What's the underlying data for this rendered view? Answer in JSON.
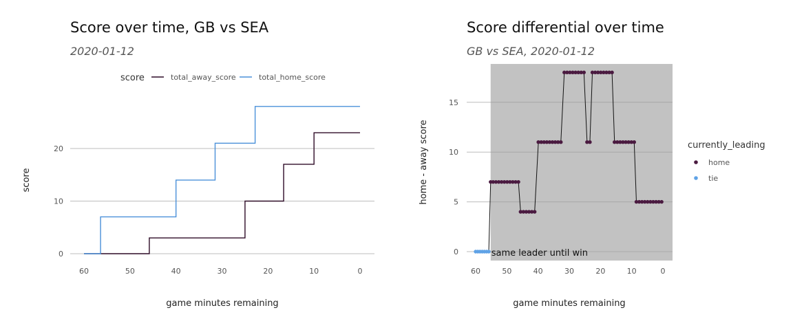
{
  "chart_data": [
    {
      "type": "line",
      "title": "Score over time, GB vs SEA",
      "subtitle": "2020-01-12",
      "xlabel": "game minutes remaining",
      "ylabel": "score",
      "xlim": [
        60,
        0
      ],
      "ylim": [
        0,
        28
      ],
      "x_ticks": [
        60,
        50,
        40,
        30,
        20,
        10,
        0
      ],
      "y_ticks": [
        0,
        10,
        20
      ],
      "legend": {
        "title": "score",
        "position": "top"
      },
      "series": [
        {
          "name": "total_away_score",
          "color": "#2d0a26",
          "points": [
            [
              60,
              0
            ],
            [
              45.8,
              0
            ],
            [
              45.8,
              3
            ],
            [
              25,
              3
            ],
            [
              25,
              10
            ],
            [
              16.6,
              10
            ],
            [
              16.6,
              17
            ],
            [
              10,
              17
            ],
            [
              10,
              23
            ],
            [
              0,
              23
            ]
          ]
        },
        {
          "name": "total_home_score",
          "color": "#4a90d9",
          "points": [
            [
              60,
              0
            ],
            [
              56.4,
              0
            ],
            [
              56.4,
              7
            ],
            [
              40,
              7
            ],
            [
              40,
              14
            ],
            [
              31.5,
              14
            ],
            [
              31.5,
              21
            ],
            [
              22.8,
              21
            ],
            [
              22.8,
              28
            ],
            [
              0,
              28
            ]
          ]
        }
      ]
    },
    {
      "type": "scatter",
      "title": "Score differential over time",
      "subtitle": "GB vs SEA, 2020-01-12",
      "xlabel": "game minutes remaining",
      "ylabel": "home - away score",
      "xlim": [
        60,
        0
      ],
      "ylim": [
        0,
        18
      ],
      "x_ticks": [
        60,
        50,
        40,
        30,
        20,
        10,
        0
      ],
      "y_ticks": [
        0,
        5,
        10,
        15
      ],
      "shaded_region": {
        "x_from": 55.2,
        "x_to": 0
      },
      "annotation": "same leader until win",
      "legend": {
        "title": "currently_leading",
        "position": "right"
      },
      "series": [
        {
          "name": "home",
          "color": "#4a1a40",
          "points": [
            [
              55.2,
              7
            ],
            [
              54.4,
              7
            ],
            [
              53.5,
              7
            ],
            [
              52.6,
              7
            ],
            [
              51.7,
              7
            ],
            [
              50.8,
              7
            ],
            [
              49.9,
              7
            ],
            [
              49,
              7
            ],
            [
              48.1,
              7
            ],
            [
              47.2,
              7
            ],
            [
              46.3,
              7
            ],
            [
              45.6,
              4
            ],
            [
              44.7,
              4
            ],
            [
              43.8,
              4
            ],
            [
              42.9,
              4
            ],
            [
              42,
              4
            ],
            [
              41.1,
              4
            ],
            [
              39.9,
              11
            ],
            [
              39,
              11
            ],
            [
              38.1,
              11
            ],
            [
              37.2,
              11
            ],
            [
              36.3,
              11
            ],
            [
              35.4,
              11
            ],
            [
              34.5,
              11
            ],
            [
              33.6,
              11
            ],
            [
              32.7,
              11
            ],
            [
              31.6,
              18
            ],
            [
              30.7,
              18
            ],
            [
              29.8,
              18
            ],
            [
              28.9,
              18
            ],
            [
              28,
              18
            ],
            [
              27.1,
              18
            ],
            [
              26.2,
              18
            ],
            [
              25.3,
              18
            ],
            [
              24.3,
              11
            ],
            [
              23.4,
              11
            ],
            [
              22.6,
              18
            ],
            [
              21.7,
              18
            ],
            [
              20.8,
              18
            ],
            [
              19.9,
              18
            ],
            [
              19,
              18
            ],
            [
              18.1,
              18
            ],
            [
              17.2,
              18
            ],
            [
              16.3,
              18
            ],
            [
              15.5,
              11
            ],
            [
              14.6,
              11
            ],
            [
              13.7,
              11
            ],
            [
              12.8,
              11
            ],
            [
              11.9,
              11
            ],
            [
              11,
              11
            ],
            [
              10.1,
              11
            ],
            [
              9.2,
              11
            ],
            [
              8.5,
              5
            ],
            [
              7.6,
              5
            ],
            [
              6.7,
              5
            ],
            [
              5.8,
              5
            ],
            [
              4.9,
              5
            ],
            [
              4,
              5
            ],
            [
              3.1,
              5
            ],
            [
              2.2,
              5
            ],
            [
              1.3,
              5
            ],
            [
              0.4,
              5
            ]
          ]
        },
        {
          "name": "tie",
          "color": "#5fa2e6",
          "points": [
            [
              60,
              0
            ],
            [
              59.3,
              0
            ],
            [
              58.6,
              0
            ],
            [
              57.9,
              0
            ],
            [
              57.2,
              0
            ],
            [
              56.5,
              0
            ],
            [
              55.8,
              0
            ]
          ]
        }
      ]
    }
  ]
}
